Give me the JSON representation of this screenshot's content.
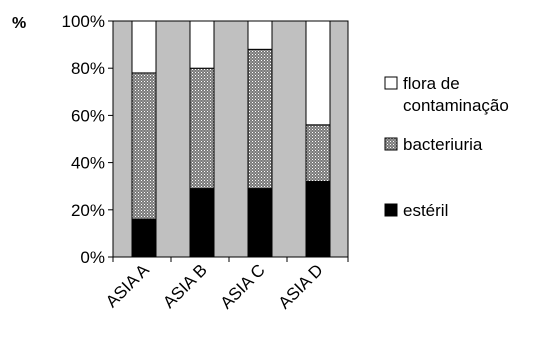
{
  "chart_data": {
    "type": "bar",
    "stacked": true,
    "normalized": true,
    "ylabel": "%",
    "yticks": [
      "0%",
      "20%",
      "40%",
      "60%",
      "80%",
      "100%"
    ],
    "ylim": [
      0,
      100
    ],
    "categories": [
      "ASIA A",
      "ASIA B",
      "ASIA C",
      "ASIA D"
    ],
    "series": [
      {
        "name": "estéril",
        "values": [
          16,
          29,
          29,
          32
        ],
        "fill": "black"
      },
      {
        "name": "bacteriuria",
        "values": [
          62,
          51,
          59,
          24
        ],
        "fill": "dotted"
      },
      {
        "name": "flora de contaminação",
        "values": [
          22,
          20,
          12,
          44
        ],
        "fill": "white"
      }
    ],
    "legend_order": [
      2,
      1,
      0
    ],
    "legend_position": "right",
    "grid": false,
    "plot_background": "#c0c0c0"
  }
}
